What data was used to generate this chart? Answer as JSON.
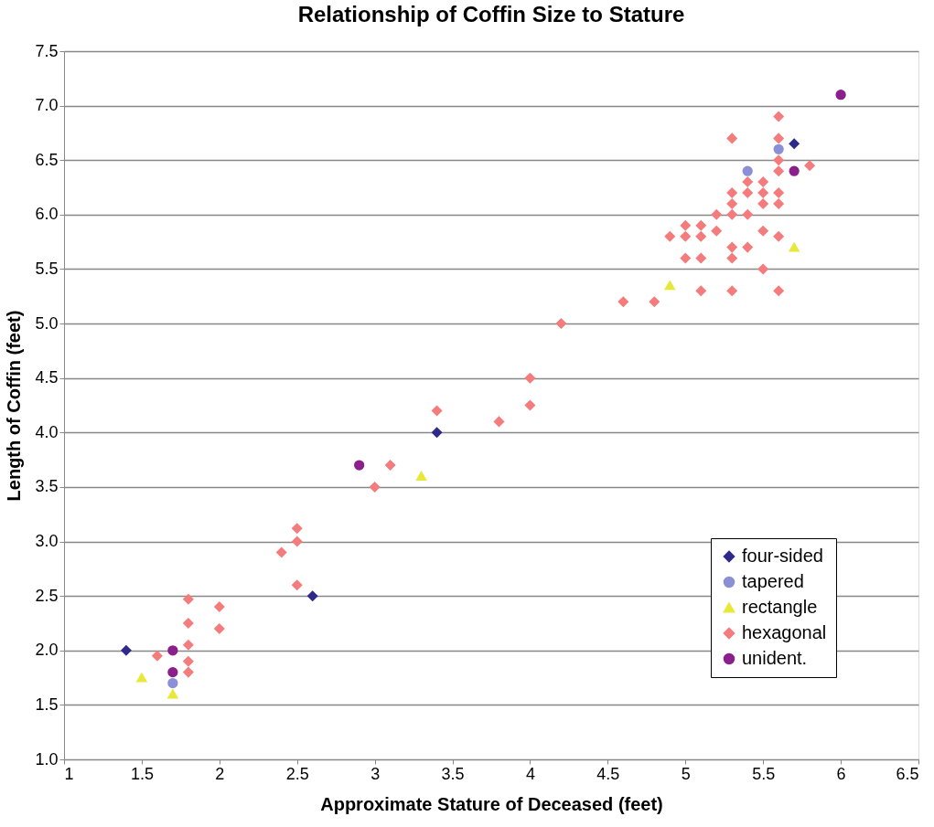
{
  "chart_data": {
    "type": "scatter",
    "title": "Relationship of Coffin Size to Stature",
    "xlabel": "Approximate Stature of Deceased (feet)",
    "ylabel": "Length of Coffin (feet)",
    "xlim": [
      1,
      6.5
    ],
    "xticks": [
      1,
      1.5,
      2,
      2.5,
      3,
      3.5,
      4,
      4.5,
      5,
      5.5,
      6,
      6.5
    ],
    "ylim": [
      1,
      7.5
    ],
    "yticks": [
      {
        "value": 1,
        "label": "1.0"
      },
      1.5,
      {
        "value": 2,
        "label": "2.0"
      },
      2.5,
      {
        "value": 3,
        "label": "3.0"
      },
      3.5,
      {
        "value": 4,
        "label": "4.0"
      },
      4.5,
      {
        "value": 5,
        "label": "5.0"
      },
      5.5,
      {
        "value": 6,
        "label": "6.0"
      },
      6.5,
      {
        "value": 7,
        "label": "7.0"
      },
      7.5
    ],
    "grid": "y",
    "legend": "bottom right",
    "series": [
      {
        "name": "four-sided",
        "color": "#2e2a8a",
        "marker": "diamond",
        "x": [
          1.4,
          2.6,
          3.4,
          5.7
        ],
        "values": [
          2.0,
          2.5,
          4.0,
          6.65
        ]
      },
      {
        "name": "tapered",
        "color": "#8b8fd6",
        "marker": "circle",
        "x": [
          1.7,
          5.4,
          5.6
        ],
        "values": [
          1.7,
          6.4,
          6.6
        ]
      },
      {
        "name": "rectangle",
        "color": "#e8e838",
        "marker": "triangle",
        "x": [
          1.5,
          1.7,
          3.3,
          4.9,
          5.7
        ],
        "values": [
          1.75,
          1.6,
          3.6,
          5.35,
          5.7
        ]
      },
      {
        "name": "hexagonal",
        "color": "#f47c7c",
        "marker": "diamond",
        "x": [
          1.6,
          1.8,
          1.8,
          1.8,
          1.8,
          1.8,
          2.0,
          2.0,
          2.4,
          2.5,
          2.5,
          2.5,
          3.0,
          3.1,
          3.4,
          3.8,
          4.0,
          4.0,
          4.2,
          4.6,
          4.8,
          4.9,
          5.0,
          5.0,
          5.0,
          5.1,
          5.1,
          5.1,
          5.1,
          5.2,
          5.2,
          5.3,
          5.3,
          5.3,
          5.3,
          5.3,
          5.3,
          5.3,
          5.4,
          5.4,
          5.4,
          5.4,
          5.5,
          5.5,
          5.5,
          5.5,
          5.5,
          5.6,
          5.6,
          5.6,
          5.6,
          5.6,
          5.6,
          5.6,
          5.6,
          5.8
        ],
        "values": [
          1.95,
          2.47,
          2.25,
          2.05,
          1.9,
          1.8,
          2.4,
          2.2,
          2.9,
          3.12,
          3.0,
          2.6,
          3.5,
          3.7,
          4.2,
          4.1,
          4.5,
          4.25,
          5.0,
          5.2,
          5.2,
          5.8,
          5.9,
          5.8,
          5.6,
          5.9,
          5.8,
          5.6,
          5.3,
          6.0,
          5.85,
          6.7,
          6.2,
          6.1,
          6.0,
          5.7,
          5.6,
          5.3,
          6.3,
          6.2,
          6.0,
          5.7,
          6.3,
          6.2,
          6.1,
          5.85,
          5.5,
          6.9,
          6.7,
          6.5,
          6.4,
          6.2,
          6.1,
          5.8,
          5.3,
          6.45
        ]
      },
      {
        "name": "unident.",
        "color": "#8b1f8b",
        "marker": "circle",
        "x": [
          1.7,
          1.7,
          2.9,
          5.7,
          6.0
        ],
        "values": [
          2.0,
          1.8,
          3.7,
          6.4,
          7.1
        ]
      }
    ]
  }
}
